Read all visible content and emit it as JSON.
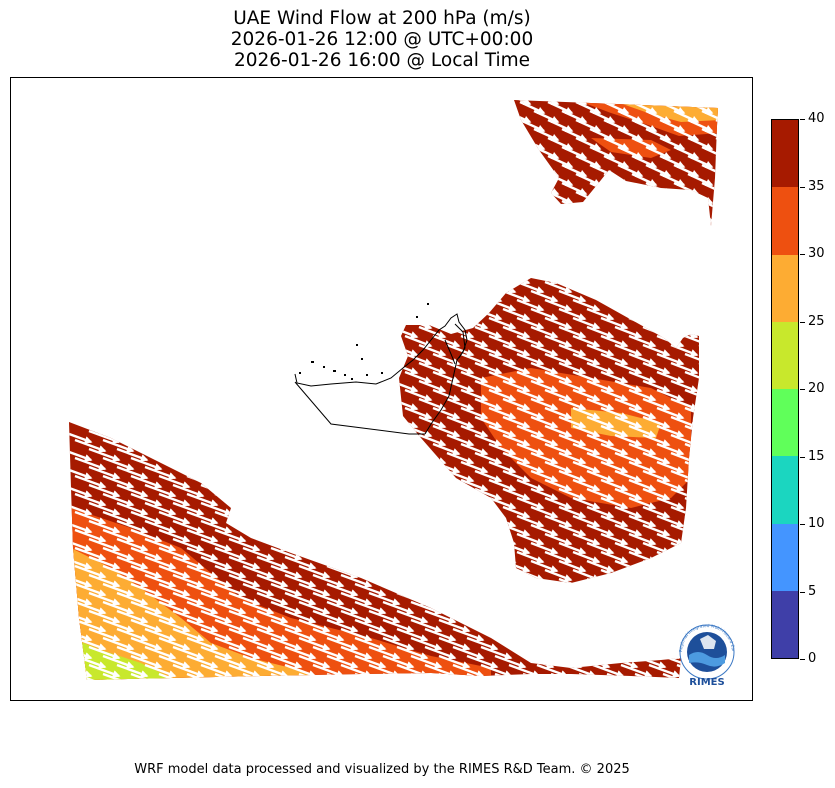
{
  "title": {
    "line1": "UAE Wind Flow at 200 hPa (m/s)",
    "line2": "2026-01-26 12:00 @ UTC+00:00",
    "line3": "2026-01-26 16:00 @ Local Time"
  },
  "map": {
    "variable": "wind speed at 200 hPa",
    "units": "m/s",
    "vector_color": "#ffffff",
    "boundary_color": "#000000",
    "regions_speed_class": [
      {
        "name": "north-east-band",
        "dominant": "35-40",
        "secondary": [
          "30-35",
          "25-30"
        ]
      },
      {
        "name": "central-band",
        "dominant": "35-40",
        "secondary": [
          "30-35",
          "25-30"
        ]
      },
      {
        "name": "south-west-band",
        "dominant": "35-40",
        "secondary": [
          "30-35",
          "25-30",
          "20-25"
        ]
      }
    ]
  },
  "colorbar": {
    "ticks": [
      "0",
      "5",
      "10",
      "15",
      "20",
      "25",
      "30",
      "35",
      "40"
    ],
    "min": 0,
    "max": 40,
    "colors": [
      "#3f3fa8",
      "#4495ff",
      "#1bd6c0",
      "#60ff5a",
      "#c8e82c",
      "#fdac33",
      "#ee5010",
      "#a61a00"
    ]
  },
  "logo": {
    "text": "RIMES",
    "ring_text": "Regional Integrated Multi-Hazard Early Warning System"
  },
  "footer": "WRF model data processed and visualized by the RIMES R&D Team. © 2025"
}
